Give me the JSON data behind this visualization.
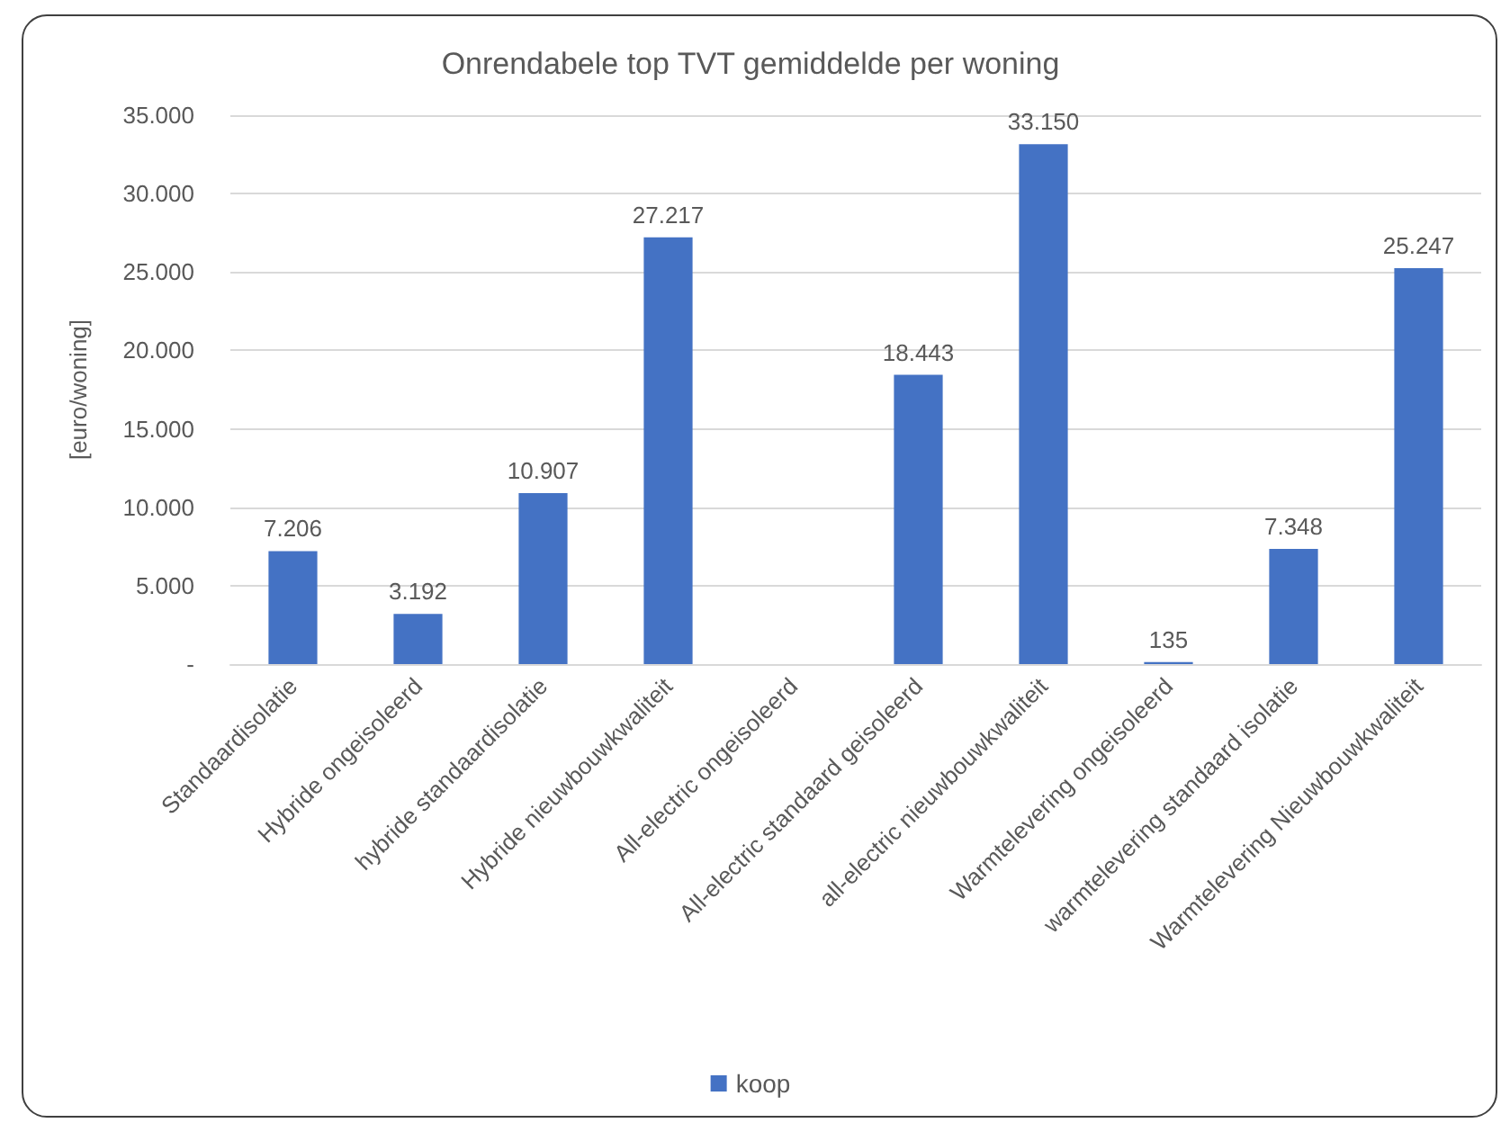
{
  "chart_data": {
    "type": "bar",
    "title": "Onrendabele top TVT gemiddelde per woning",
    "ylabel": "[euro/woning]",
    "categories": [
      "Standaardisolatie",
      "Hybride ongeisoleerd",
      "hybride standaardisolatie",
      "Hybride nieuwbouwkwaliteit",
      "All-electric ongeisoleerd",
      "All-electric standaard geisoleerd",
      "all-electric nieuwbouwkwaliteit",
      "Warmtelevering ongeisoleerd",
      "warmtelevering standaard isolatie",
      "Warmtelevering Nieuwbouwkwaliteit"
    ],
    "series": [
      {
        "name": "koop",
        "color": "#4472c4",
        "values": [
          7206,
          3192,
          10907,
          27217,
          null,
          18443,
          33150,
          135,
          7348,
          25247
        ],
        "value_labels": [
          "7.206",
          "3.192",
          "10.907",
          "27.217",
          null,
          "18.443",
          "33.150",
          "135",
          "7.348",
          "25.247"
        ]
      }
    ],
    "ylim": [
      0,
      35000
    ],
    "yticks": [
      {
        "value": 0,
        "label": "-"
      },
      {
        "value": 5000,
        "label": "5.000"
      },
      {
        "value": 10000,
        "label": "10.000"
      },
      {
        "value": 15000,
        "label": "15.000"
      },
      {
        "value": 20000,
        "label": "20.000"
      },
      {
        "value": 25000,
        "label": "25.000"
      },
      {
        "value": 30000,
        "label": "30.000"
      },
      {
        "value": 35000,
        "label": "35.000"
      }
    ],
    "grid": "y",
    "legend": "bottom"
  }
}
